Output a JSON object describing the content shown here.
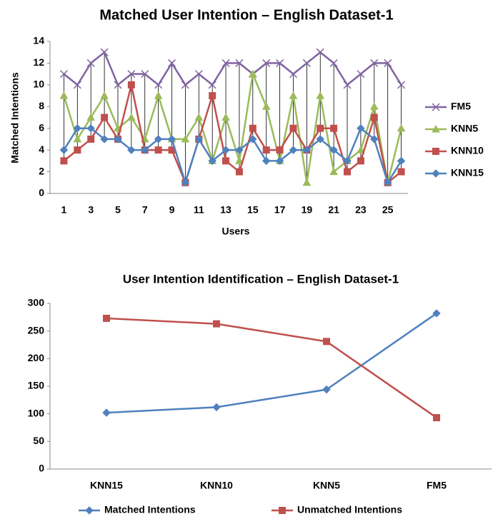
{
  "chart_data": [
    {
      "type": "line",
      "title": "Matched User Intention – English Dataset-1",
      "x_label": "Users",
      "y_label": "Matched Intentions",
      "categories": [
        1,
        null,
        3,
        null,
        5,
        null,
        7,
        null,
        9,
        null,
        11,
        null,
        13,
        null,
        15,
        null,
        17,
        null,
        19,
        null,
        21,
        null,
        23,
        null,
        25,
        null
      ],
      "series": [
        {
          "name": "FM5",
          "color": "#8064a2",
          "marker": "x",
          "values": [
            11,
            10,
            12,
            13,
            10,
            11,
            11,
            10,
            12,
            10,
            11,
            10,
            12,
            12,
            11,
            12,
            12,
            11,
            12,
            13,
            12,
            10,
            11,
            12,
            12,
            10
          ]
        },
        {
          "name": "KNN5",
          "color": "#9bbb59",
          "marker": "triangle",
          "values": [
            9,
            5,
            7,
            9,
            6,
            7,
            5,
            9,
            5,
            5,
            7,
            3,
            7,
            3,
            11,
            8,
            3,
            9,
            1,
            9,
            2,
            3,
            4,
            8,
            1,
            6
          ]
        },
        {
          "name": "KNN10",
          "color": "#c0504d",
          "marker": "square",
          "values": [
            3,
            4,
            5,
            7,
            5,
            10,
            4,
            4,
            4,
            1,
            5,
            9,
            3,
            2,
            6,
            4,
            4,
            6,
            4,
            6,
            6,
            2,
            3,
            7,
            1,
            2
          ]
        },
        {
          "name": "KNN15",
          "color": "#4f81bd",
          "marker": "diamond",
          "values": [
            4,
            6,
            6,
            5,
            5,
            4,
            4,
            5,
            5,
            1,
            5,
            3,
            4,
            4,
            5,
            3,
            3,
            4,
            4,
            5,
            4,
            3,
            6,
            5,
            1,
            3
          ]
        }
      ],
      "ylim": [
        0,
        14
      ],
      "yticks": [
        0,
        2,
        4,
        6,
        8,
        10,
        12,
        14
      ],
      "grid": false,
      "high_low_lines": true,
      "legend": "right"
    },
    {
      "type": "line",
      "title": "User Intention Identification – English Dataset-1",
      "categories": [
        "KNN15",
        "KNN10",
        "KNN5",
        "FM5"
      ],
      "series": [
        {
          "name": "Matched Intentions",
          "color": "#4f81bd",
          "marker": "diamond",
          "values": [
            102,
            112,
            144,
            282
          ]
        },
        {
          "name": "Unmatched Intentions",
          "color": "#c0504d",
          "marker": "square",
          "values": [
            273,
            263,
            231,
            93
          ]
        }
      ],
      "ylim": [
        0,
        300
      ],
      "yticks": [
        0,
        50,
        100,
        150,
        200,
        250,
        300
      ],
      "grid": false,
      "high_low_lines": false,
      "legend": "bottom"
    }
  ]
}
